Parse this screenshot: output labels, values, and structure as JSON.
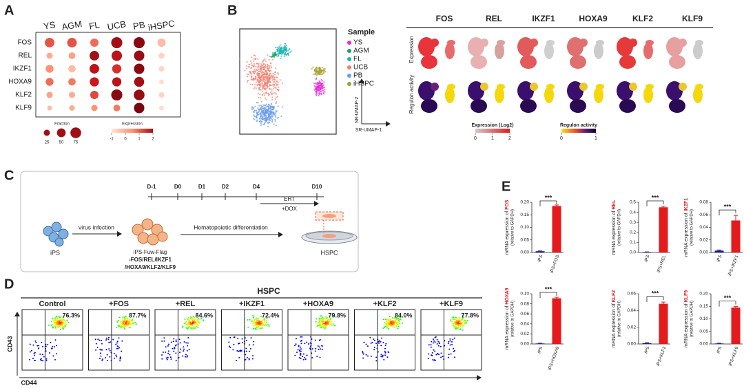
{
  "panel_labels": [
    "A",
    "B",
    "C",
    "D",
    "E"
  ],
  "chart_data": [
    {
      "type": "dot",
      "rows": [
        "FOS",
        "REL",
        "IKZF1",
        "HOXA9",
        "KLF2",
        "KLF9"
      ],
      "columns": [
        "YS",
        "AGM",
        "FL",
        "UCB",
        "PB",
        "iHSPC"
      ],
      "fraction": [
        [
          60,
          60,
          45,
          80,
          80,
          45
        ],
        [
          25,
          30,
          60,
          70,
          70,
          25
        ],
        [
          40,
          35,
          60,
          55,
          70,
          20
        ],
        [
          40,
          35,
          55,
          55,
          65,
          15
        ],
        [
          25,
          25,
          45,
          80,
          75,
          20
        ],
        [
          15,
          20,
          25,
          30,
          70,
          15
        ]
      ],
      "expression": [
        [
          0.5,
          0.5,
          0.3,
          1.5,
          1.8,
          -0.5
        ],
        [
          -0.3,
          -0.2,
          1.5,
          1.2,
          1.6,
          -0.8
        ],
        [
          0,
          -0.5,
          1.2,
          0.8,
          1.8,
          -0.8
        ],
        [
          0.3,
          0.2,
          1.0,
          1.2,
          1.5,
          -0.9
        ],
        [
          -0.2,
          -0.3,
          0.6,
          1.8,
          1.6,
          -0.8
        ],
        [
          -0.5,
          -0.3,
          0,
          0.2,
          2.0,
          -0.9
        ]
      ],
      "size_legend": {
        "title": "Fraction",
        "values": [
          25,
          50,
          75
        ]
      },
      "color_legend": {
        "title": "Expression",
        "lim": [
          -1,
          2
        ],
        "ticks": [
          -1,
          0,
          1,
          2
        ]
      }
    },
    {
      "type": "bar",
      "y_label_prefix": "mRNA expression of",
      "gene": "FOS",
      "y_label_unit": "(relative to GAPDH)",
      "categories": [
        "iPS",
        "iPS+FOS"
      ],
      "values": [
        0.005,
        0.185
      ],
      "errors": [
        0.001,
        0.004
      ],
      "colors": [
        "#1b1b8f",
        "#e41a1c"
      ],
      "ylim": [
        0,
        0.2
      ],
      "yticks": [
        {
          "value": 0,
          "label": "0.00"
        },
        0.05,
        {
          "value": 0.1,
          "label": "0.10"
        },
        0.15,
        {
          "value": 0.2,
          "label": "0.20"
        }
      ],
      "significance": "***"
    },
    {
      "type": "bar",
      "y_label_prefix": "mRNA expression of",
      "gene": "REL",
      "y_label_unit": "(relative to GAPDH)",
      "categories": [
        "iPS",
        "iPS+REL"
      ],
      "values": [
        0.005,
        0.45
      ],
      "errors": [
        0.001,
        0.01
      ],
      "colors": [
        "#1b1b8f",
        "#e41a1c"
      ],
      "ylim": [
        0,
        0.5
      ],
      "yticks": [
        {
          "value": 0,
          "label": "0.0"
        },
        0.1,
        0.2,
        0.3,
        0.4,
        0.5
      ],
      "significance": "***"
    },
    {
      "type": "bar",
      "y_label_prefix": "mRNA expression of",
      "gene": "IKZF1",
      "y_label_unit": "(relative to GAPDH)",
      "categories": [
        "iPS",
        "iPS+IKZF1"
      ],
      "values": [
        0.003,
        0.051
      ],
      "errors": [
        0.001,
        0.008
      ],
      "colors": [
        "#1b1b8f",
        "#e41a1c"
      ],
      "ylim": [
        0,
        0.08
      ],
      "yticks": [
        {
          "value": 0,
          "label": "0.00"
        },
        0.02,
        0.04,
        0.06,
        0.08
      ],
      "significance": "***"
    },
    {
      "type": "bar",
      "y_label_prefix": "mRNA expression of",
      "gene": "HOXA9",
      "y_label_unit": "(relative to GAPDH)",
      "categories": [
        "iPS",
        "iPS+HOXA9"
      ],
      "values": [
        0.001,
        0.091
      ],
      "errors": [
        0.0005,
        0.002
      ],
      "colors": [
        "#1b1b8f",
        "#e41a1c"
      ],
      "ylim": [
        0,
        0.1
      ],
      "yticks": [
        {
          "value": 0,
          "label": "0.00"
        },
        0.02,
        0.04,
        0.06,
        0.08,
        {
          "value": 0.1,
          "label": "0.10"
        }
      ],
      "significance": "***"
    },
    {
      "type": "bar",
      "y_label_prefix": "mRNA expression of",
      "gene": "KLF2",
      "y_label_unit": "(relative to GAPDH)",
      "categories": [
        "iPS",
        "iPS+KLF2"
      ],
      "values": [
        0.001,
        0.048
      ],
      "errors": [
        0.0005,
        0.002
      ],
      "colors": [
        "#1b1b8f",
        "#e41a1c"
      ],
      "ylim": [
        0,
        0.06
      ],
      "yticks": [
        {
          "value": 0,
          "label": "0.00"
        },
        0.02,
        0.04,
        0.06
      ],
      "significance": "***"
    },
    {
      "type": "bar",
      "y_label_prefix": "mRNA expression of",
      "gene": "KLF9",
      "y_label_unit": "(relative to GAPDH)",
      "categories": [
        "iPS",
        "iPS+KLF9"
      ],
      "values": [
        0.002,
        0.145
      ],
      "errors": [
        0.001,
        0.004
      ],
      "colors": [
        "#1b1b8f",
        "#e41a1c"
      ],
      "ylim": [
        0,
        0.2
      ],
      "yticks": [
        {
          "value": 0,
          "label": "0.00"
        },
        0.05,
        {
          "value": 0.1,
          "label": "0.10"
        },
        0.15,
        {
          "value": 0.2,
          "label": "0.20"
        }
      ],
      "significance": "***"
    }
  ],
  "umap": {
    "legend_title": "Sample",
    "samples": [
      {
        "name": "YS",
        "color": "#e52bd6"
      },
      {
        "name": "AGM",
        "color": "#1aa36b"
      },
      {
        "name": "FL",
        "color": "#1cb5b0"
      },
      {
        "name": "UCB",
        "color": "#f07f6e"
      },
      {
        "name": "PB",
        "color": "#6b9de8"
      },
      {
        "name": "iHSPC",
        "color": "#a3a12a"
      }
    ],
    "x_label": "SR-UMAP-1",
    "y_label": "SR-UMAP-2",
    "genes": [
      "FOS",
      "REL",
      "IKZF1",
      "HOXA9",
      "KLF2",
      "KLF9"
    ],
    "row_labels": [
      "Expression",
      "Regulon activity"
    ],
    "expression_colorbar": {
      "title": "Expression (Log2)",
      "lim": [
        0,
        2
      ],
      "ticks": [
        0,
        1,
        2
      ]
    },
    "regulon_colorbar": {
      "title": "Regulon activity",
      "lim": [
        0,
        1
      ],
      "ticks": [
        0,
        1
      ]
    }
  },
  "schematic": {
    "days": [
      "D-1",
      "D0",
      "D1",
      "D2",
      "D4",
      "D10"
    ],
    "eht": "EHT",
    "dox": "+DOX",
    "start": "iPS",
    "step1": "virus infection",
    "line_name": "iPS-Fuw-Flag",
    "line_genes_1": "-FOS/REL/IKZF1",
    "line_genes_2": "/HOXA9/KLF2/KLF9",
    "step2": "Hematopoietic differentiation",
    "end": "HSPC"
  },
  "flow": {
    "title": "HSPC",
    "x_label": "CD44",
    "y_label": "CD43",
    "conditions": [
      "Control",
      "+FOS",
      "+REL",
      "+IKZF1",
      "+HOXA9",
      "+KLF2",
      "+KLF9"
    ],
    "percentages": [
      "76.3%",
      "87.7%",
      "84.6%",
      "72.4%",
      "79.8%",
      "84.0%",
      "77.8%"
    ]
  }
}
